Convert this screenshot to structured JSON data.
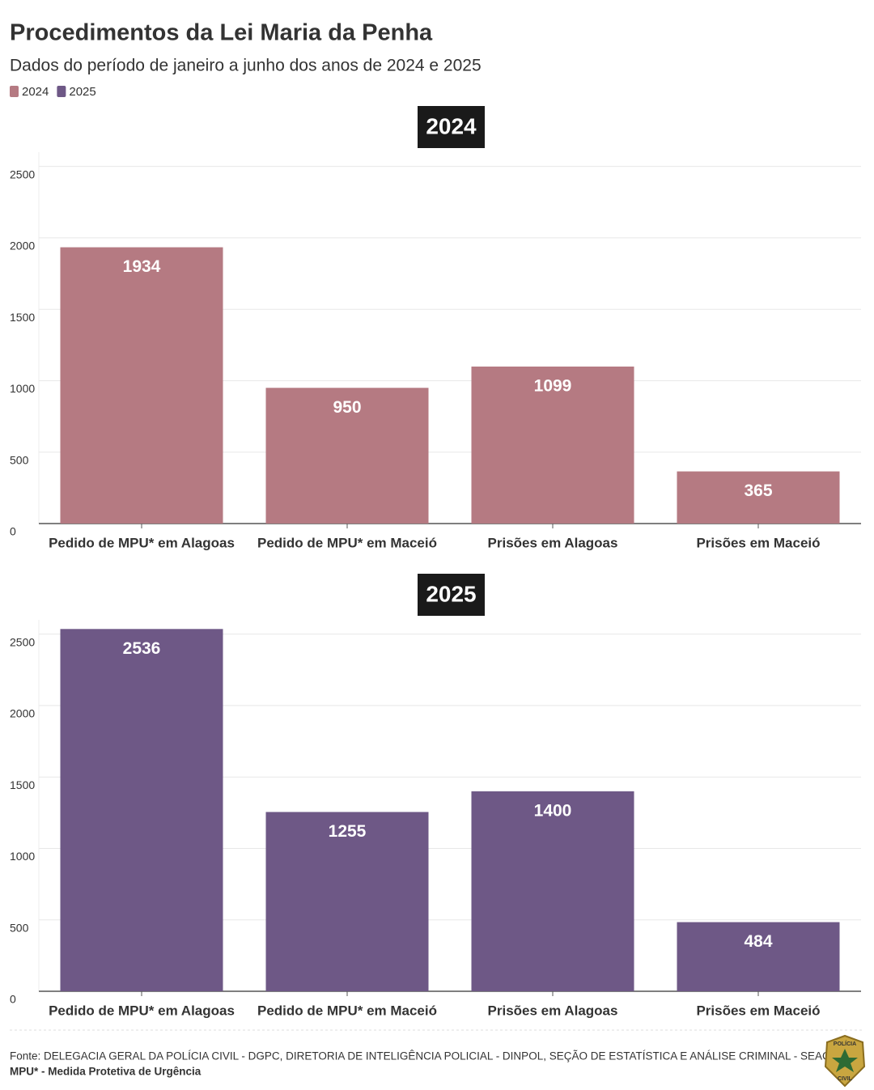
{
  "header": {
    "title": "Procedimentos da Lei Maria da Penha",
    "subtitle": "Dados do período de janeiro a junho dos anos de 2024 e 2025"
  },
  "chart_data": [
    {
      "type": "bar",
      "title": "2024",
      "categories": [
        "Pedido de MPU* em Alagoas",
        "Pedido de MPU* em Maceió",
        "Prisões em Alagoas",
        "Prisões em Maceió"
      ],
      "series": [
        {
          "name": "2024",
          "color": "#b57a82",
          "values": [
            1934,
            950,
            1099,
            365
          ]
        }
      ],
      "ylim": [
        0,
        2600
      ],
      "yticks": [
        0,
        500,
        1000,
        1500,
        2000,
        2500
      ],
      "grid": true
    },
    {
      "type": "bar",
      "title": "2025",
      "categories": [
        "Pedido de MPU* em Alagoas",
        "Pedido de MPU* em Maceió",
        "Prisões em Alagoas",
        "Prisões em Maceió"
      ],
      "series": [
        {
          "name": "2025",
          "color": "#6e5886",
          "values": [
            2536,
            1255,
            1400,
            484
          ]
        }
      ],
      "ylim": [
        0,
        2600
      ],
      "yticks": [
        0,
        500,
        1000,
        1500,
        2000,
        2500
      ],
      "grid": true
    }
  ],
  "footer": {
    "source": "Fonte: DELEGACIA GERAL DA POLÍCIA CIVIL - DGPC, DIRETORIA DE INTELIGÊNCIA POLICIAL - DINPOL, SEÇÃO DE ESTATÍSTICA E ANÁLISE CRIMINAL - SEAC •",
    "note": "MPU* - Medida Protetiva de Urgência",
    "logo_text": [
      "POLÍCIA",
      "CIVIL"
    ]
  }
}
